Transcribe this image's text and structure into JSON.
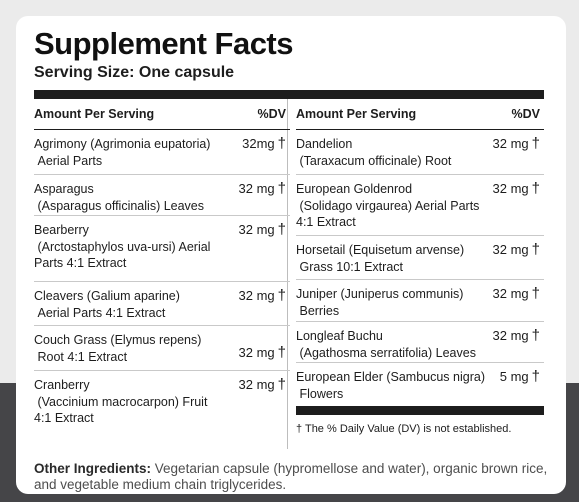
{
  "title": "Supplement Facts",
  "serving_size": "Serving Size: One capsule",
  "header": {
    "amount": "Amount Per Serving",
    "dv": "%DV"
  },
  "left_rows": [
    {
      "name": "Agrimony (Agrimonia eupatoria)",
      "detail": "Aerial Parts",
      "amount": "32mg",
      "dv": "†"
    },
    {
      "name": "Asparagus",
      "detail": "(Asparagus officinalis) Leaves",
      "amount": "32 mg",
      "dv": "†"
    },
    {
      "name": "Bearberry",
      "detail": "(Arctostaphylos uva-ursi) Aerial Parts 4:1 Extract",
      "amount": "32 mg",
      "dv": "†"
    },
    {
      "name": "Cleavers (Galium aparine)",
      "detail": "Aerial Parts 4:1 Extract",
      "amount": "32 mg",
      "dv": "†"
    },
    {
      "name": "Couch Grass (Elymus repens)",
      "detail": "Root 4:1 Extract",
      "amount": "32 mg",
      "dv": "†"
    },
    {
      "name": "Cranberry",
      "detail": "(Vaccinium macrocarpon) Fruit 4:1 Extract",
      "amount": "32 mg",
      "dv": "†"
    }
  ],
  "right_rows": [
    {
      "name": "Dandelion",
      "detail": "(Taraxacum officinale) Root",
      "amount": "32 mg",
      "dv": "†"
    },
    {
      "name": "European Goldenrod",
      "detail": "(Solidago virgaurea) Aerial Parts 4:1 Extract",
      "amount": "32 mg",
      "dv": "†"
    },
    {
      "name": "Horsetail (Equisetum arvense)",
      "detail": "Grass 10:1 Extract",
      "amount": "32 mg",
      "dv": "†"
    },
    {
      "name": "Juniper (Juniperus communis)",
      "detail": "Berries",
      "amount": "32 mg",
      "dv": "†"
    },
    {
      "name": "Longleaf Buchu",
      "detail": "(Agathosma serratifolia) Leaves",
      "amount": "32 mg",
      "dv": "†"
    },
    {
      "name": "European Elder (Sambucus nigra)",
      "detail": "Flowers",
      "amount": "5 mg",
      "dv": "†"
    }
  ],
  "footnote": "† The % Daily Value (DV) is not established.",
  "other_ingredients": {
    "label": "Other Ingredients:",
    "text": "Vegetarian capsule (hypromellose and water), organic brown rice, and vegetable medium chain triglycerides."
  }
}
